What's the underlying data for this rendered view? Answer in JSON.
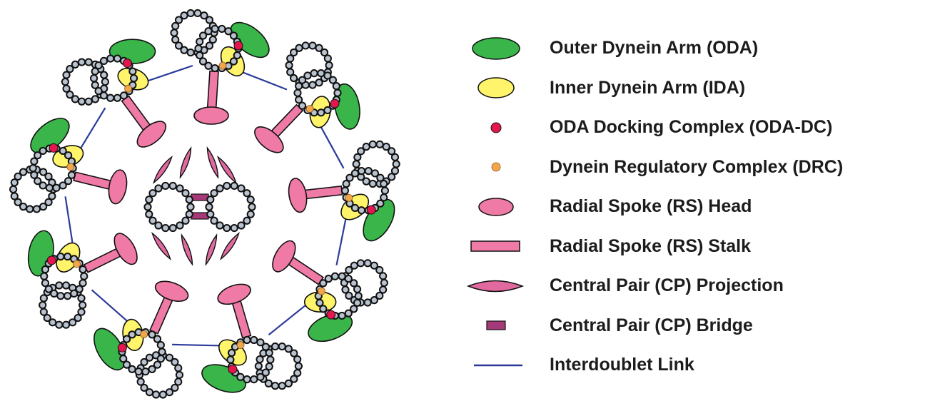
{
  "colors": {
    "oda": "#3ab54a",
    "ida": "#fff46a",
    "oda_dc": "#e3164e",
    "drc": "#f2a64a",
    "rs": "#f07aa6",
    "cp_projection": "#e06aa0",
    "cp_bridge": "#a63a78",
    "link": "#2b3a9a",
    "bead": "#b9c3cf",
    "outline": "#111111"
  },
  "legend": {
    "items": [
      {
        "key": "oda",
        "shape": "ellipse-green",
        "label": "Outer Dynein Arm (ODA)"
      },
      {
        "key": "ida",
        "shape": "ellipse-yellow",
        "label": "Inner Dynein Arm (IDA)"
      },
      {
        "key": "oda_dc",
        "shape": "dot-red",
        "label": "ODA Docking Complex (ODA-DC)"
      },
      {
        "key": "drc",
        "shape": "dot-orange",
        "label": "Dynein Regulatory Complex (DRC)"
      },
      {
        "key": "rs_head",
        "shape": "ellipse-pink",
        "label": "Radial Spoke (RS) Head"
      },
      {
        "key": "rs_stalk",
        "shape": "rect-pink",
        "label": "Radial Spoke (RS) Stalk"
      },
      {
        "key": "cp_projection",
        "shape": "lens-pink",
        "label": "Central Pair (CP) Projection"
      },
      {
        "key": "cp_bridge",
        "shape": "bar-purple",
        "label": "Central Pair (CP) Bridge"
      },
      {
        "key": "link",
        "shape": "line-blue",
        "label": "Interdoublet Link"
      }
    ]
  },
  "diagram": {
    "doublet_count": 9,
    "central_pair_count": 2
  }
}
